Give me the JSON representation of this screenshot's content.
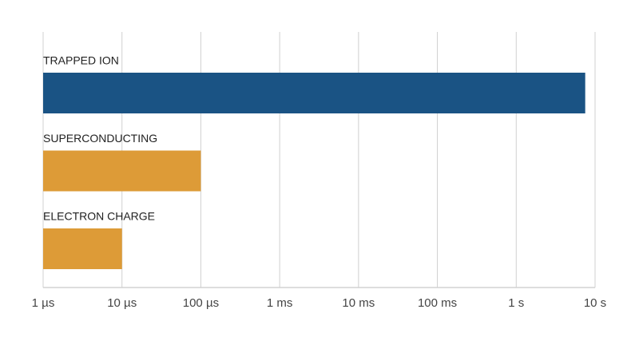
{
  "chart_data": {
    "type": "bar",
    "orientation": "horizontal",
    "xscale": "log",
    "categories": [
      "TRAPPED ION",
      "SUPERCONDUCTING",
      "ELECTRON CHARGE"
    ],
    "values": [
      7.5,
      0.0001,
      1e-05
    ],
    "colors": [
      "#1a5384",
      "#dd9b37",
      "#dd9b37"
    ],
    "xlim": [
      1e-06,
      10
    ],
    "xticks": [
      {
        "value": 1e-06,
        "label": "1 µs"
      },
      {
        "value": 1e-05,
        "label": "10 µs"
      },
      {
        "value": 0.0001,
        "label": "100 µs"
      },
      {
        "value": 0.001,
        "label": "1 ms"
      },
      {
        "value": 0.01,
        "label": "10 ms"
      },
      {
        "value": 0.1,
        "label": "100 ms"
      },
      {
        "value": 1,
        "label": "1 s"
      },
      {
        "value": 10,
        "label": "10 s"
      }
    ],
    "grid": true
  }
}
